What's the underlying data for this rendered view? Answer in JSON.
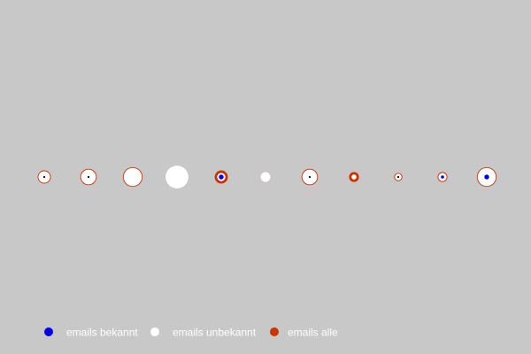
{
  "chart_data": {
    "type": "scatter",
    "title": "",
    "xlabel": "",
    "ylabel": "",
    "grid": false,
    "legend_position": "bottom-left",
    "colors": {
      "background": "#c8c8c8",
      "bekannt": "#0000ee",
      "unbekannt": "#ffffff",
      "alle": "#cc3300",
      "dot": "#000000"
    },
    "series": [
      {
        "name": "emails bekannt",
        "key": "bekannt",
        "color": "#0000ee"
      },
      {
        "name": "emails unbekannt",
        "key": "unbekannt",
        "color": "#ffffff"
      },
      {
        "name": "emails alle",
        "key": "alle",
        "color": "#cc3300"
      }
    ],
    "points": [
      {
        "x": 1,
        "alle": 8,
        "unbekannt": 7,
        "bekannt": 1,
        "marker": "dark"
      },
      {
        "x": 2,
        "alle": 10,
        "unbekannt": 9,
        "bekannt": 1,
        "marker": "dark"
      },
      {
        "x": 3,
        "alle": 12,
        "unbekannt": 11,
        "bekannt": 0,
        "marker": "none"
      },
      {
        "x": 4,
        "alle": 14,
        "unbekannt": 14,
        "bekannt": 0,
        "marker": "none"
      },
      {
        "x": 5,
        "alle": 8,
        "unbekannt": 5,
        "bekannt": 3,
        "marker": "blue"
      },
      {
        "x": 6,
        "alle": 6,
        "unbekannt": 6,
        "bekannt": 0,
        "marker": "none"
      },
      {
        "x": 7,
        "alle": 10,
        "unbekannt": 9,
        "bekannt": 1,
        "marker": "dark"
      },
      {
        "x": 8,
        "alle": 6,
        "unbekannt": 3,
        "bekannt": 0,
        "marker": "none"
      },
      {
        "x": 9,
        "alle": 5,
        "unbekannt": 4,
        "bekannt": 1,
        "marker": "dark"
      },
      {
        "x": 10,
        "alle": 6,
        "unbekannt": 5,
        "bekannt": 2,
        "marker": "blue"
      },
      {
        "x": 11,
        "alle": 12,
        "unbekannt": 11,
        "bekannt": 3,
        "marker": "blue"
      }
    ]
  }
}
